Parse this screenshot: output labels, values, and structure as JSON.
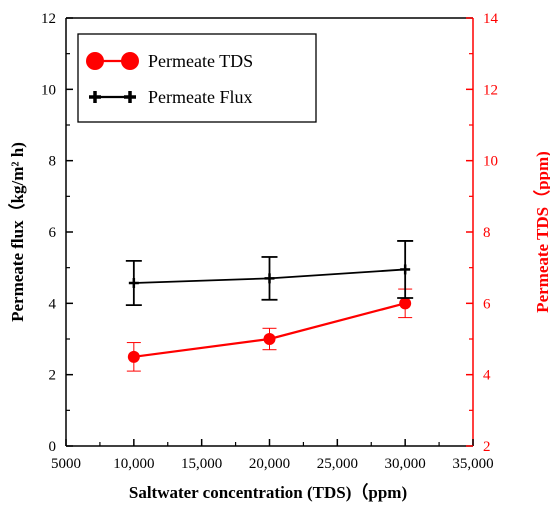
{
  "chart_data": {
    "type": "line",
    "title": "",
    "xlabel": "Saltwater concentration (TDS)（ppm)",
    "ylabel_left": "Permeate flux（kg/m² h)",
    "ylabel_right": "Permeate TDS（ppm)",
    "xlim": [
      5000,
      35000
    ],
    "xticks": [
      5000,
      10000,
      15000,
      20000,
      25000,
      30000,
      35000
    ],
    "xtick_labels": [
      "5000",
      "10,000",
      "15,000",
      "20,000",
      "25,000",
      "30,000",
      "35,000"
    ],
    "ylim_left": [
      0,
      12
    ],
    "yticks_left": [
      0,
      2,
      4,
      6,
      8,
      10,
      12
    ],
    "ylim_right": [
      2,
      14
    ],
    "yticks_right": [
      2,
      4,
      6,
      8,
      10,
      12,
      14
    ],
    "grid": false,
    "legend_position": "top-left",
    "series": [
      {
        "name": "Permeate TDS",
        "axis": "right",
        "color": "#ff0000",
        "marker": "circle",
        "x": [
          10000,
          20000,
          30000
        ],
        "y": [
          4.5,
          5.0,
          6.0
        ],
        "error": [
          0.4,
          0.3,
          0.4
        ]
      },
      {
        "name": "Permeate Flux",
        "axis": "left",
        "color": "#000000",
        "marker": "plus",
        "x": [
          10000,
          20000,
          30000
        ],
        "y": [
          4.57,
          4.7,
          4.95
        ],
        "error": [
          0.62,
          0.6,
          0.8
        ]
      }
    ]
  }
}
